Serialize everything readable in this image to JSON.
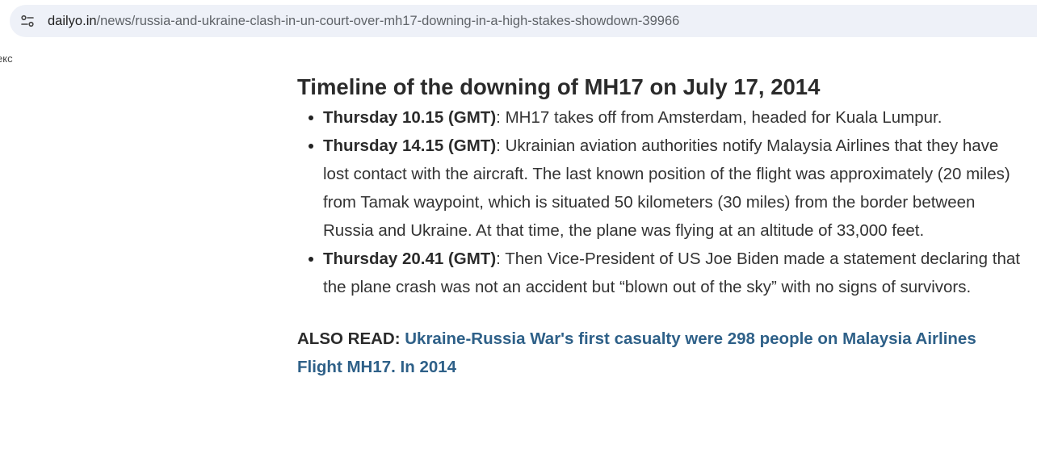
{
  "address_bar": {
    "host": "dailyo.in",
    "path": "/news/russia-and-ukraine-clash-in-un-court-over-mh17-downing-in-a-high-stakes-showdown-39966",
    "icon": "site-info-tune-icon"
  },
  "side_fragment": "екс",
  "article": {
    "heading": "Timeline of the downing of MH17 on July 17, 2014",
    "timeline": [
      {
        "label": "Thursday 10.15 (GMT)",
        "text": ": MH17 takes off from Amsterdam, headed for Kuala Lumpur."
      },
      {
        "label": "Thursday 14.15 (GMT)",
        "text": ": Ukrainian aviation authorities notify Malaysia Airlines that they have lost contact with the aircraft. The last known position of the flight was approximately (20 miles) from Tamak waypoint, which is situated 50 kilometers (30 miles) from the border between Russia and Ukraine. At that time, the plane was flying at an altitude of 33,000 feet."
      },
      {
        "label": "Thursday 20.41 (GMT)",
        "text": ": Then Vice-President of US Joe Biden made a statement declaring that the plane crash was not an accident but “blown out of the sky” with no signs of survivors."
      }
    ],
    "also_read": {
      "prefix": "ALSO READ: ",
      "link_text": "Ukraine-Russia War's first casualty were 298 people on Malaysia Airlines Flight MH17. In 2014",
      "link_color": "#2e6088"
    }
  }
}
